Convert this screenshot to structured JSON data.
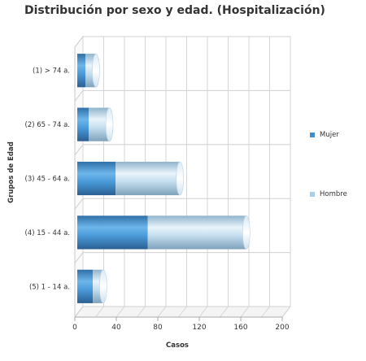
{
  "chart_data": {
    "type": "bar",
    "orientation": "horizontal",
    "stacked": true,
    "title": "Distribución por sexo y edad. (Hospitalización)",
    "xlabel": "Casos",
    "ylabel": "Grupos de Edad",
    "categories": [
      "(1) > 74 a.",
      "(2) 65 - 74 a.",
      "(3) 45 - 64 a.",
      "(4) 15 - 44 a.",
      "(5) 1 - 14 a."
    ],
    "series": [
      {
        "name": "Mujer",
        "values": [
          8,
          11,
          37,
          68,
          15
        ],
        "color": "#3d8fd0"
      },
      {
        "name": "Hombre",
        "values": [
          10,
          20,
          62,
          95,
          10
        ],
        "color": "#a8cfe8"
      }
    ],
    "xlim": [
      0,
      200
    ],
    "xticks": [
      0,
      40,
      80,
      120,
      160,
      200
    ],
    "grid": true,
    "legend_position": "right"
  }
}
